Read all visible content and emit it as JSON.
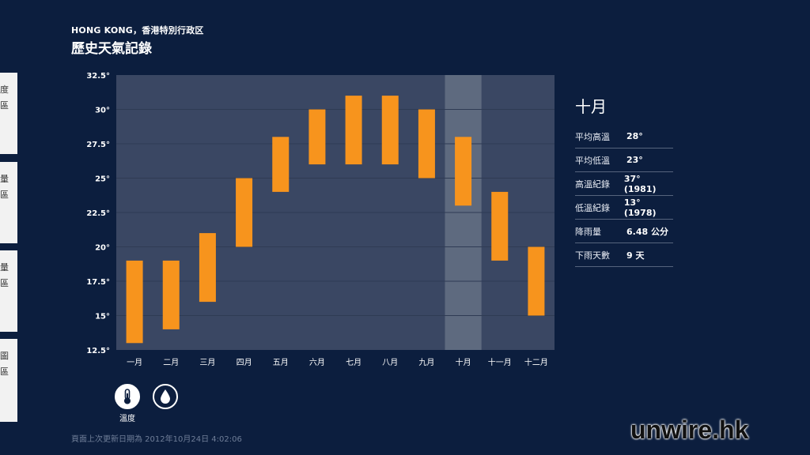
{
  "header": {
    "location": "HONG KONG，香港特別行政区",
    "title": "歷史天氣記錄"
  },
  "left_tabs": [
    {
      "lines": [
        "度",
        "區"
      ]
    },
    {
      "lines": [
        "量",
        "區"
      ]
    },
    {
      "lines": [
        "量",
        "區"
      ]
    },
    {
      "lines": [
        "圖",
        "區"
      ]
    }
  ],
  "chart_data": {
    "type": "bar",
    "subtype": "floating-range",
    "categories": [
      "一月",
      "二月",
      "三月",
      "四月",
      "五月",
      "六月",
      "七月",
      "八月",
      "九月",
      "十月",
      "十一月",
      "十二月"
    ],
    "low": [
      13,
      14,
      16,
      20,
      24,
      26,
      26,
      26,
      25,
      23,
      19,
      15
    ],
    "high": [
      19,
      19,
      21,
      25,
      28,
      30,
      31,
      31,
      30,
      28,
      24,
      20
    ],
    "y_ticks": [
      "12.5°",
      "15°",
      "17.5°",
      "20°",
      "22.5°",
      "25°",
      "27.5°",
      "30°",
      "32.5°"
    ],
    "ylim": [
      12.5,
      32.5
    ],
    "selected_index": 9,
    "grid": true,
    "colors": {
      "bar": "#f7941d",
      "plot_bg": "#3a4763",
      "selected_bg": "#5e6a7f",
      "grid": "#2f3b54"
    }
  },
  "side_panel": {
    "month": "十月",
    "stats": [
      {
        "label": "平均高溫",
        "value": "28°"
      },
      {
        "label": "平均低溫",
        "value": "23°"
      },
      {
        "label": "高溫紀錄",
        "value": "37° (1981)"
      },
      {
        "label": "低溫紀錄",
        "value": "13° (1978)"
      },
      {
        "label": "降雨量",
        "value": "6.48 公分"
      },
      {
        "label": "下雨天數",
        "value": "9 天"
      }
    ]
  },
  "toggles": {
    "temperature_label": "溫度",
    "temperature_icon": "thermometer-icon",
    "rain_icon": "raindrop-icon"
  },
  "footer": {
    "updated": "頁面上次更新日期為 2012年10月24日 4:02:06"
  },
  "watermark": "unwire.hk"
}
